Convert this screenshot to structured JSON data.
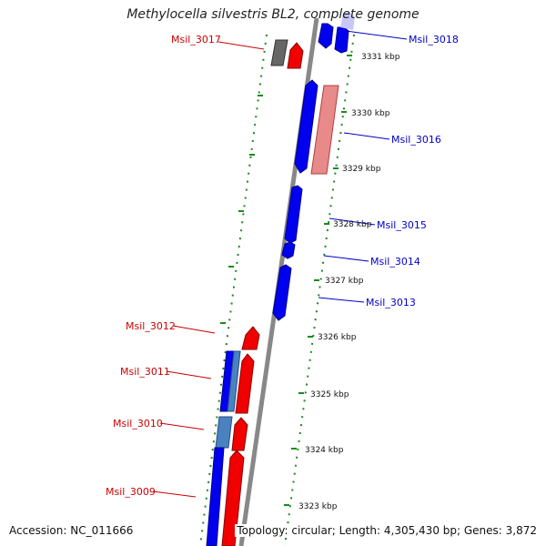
{
  "title": "Methylocella silvestris BL2, complete genome",
  "accession_text": "Accession: NC_011666",
  "summary_text": "Topology: circular; Length: 4,305,430 bp; Genes: 3,872",
  "colors": {
    "forward_gene": "#f00000",
    "reverse_gene": "#0000ee",
    "backbone": "#888888",
    "tick": "#1a8a1a",
    "forward_label": "#cc0000",
    "reverse_label": "#0000cc"
  },
  "kbp_ticks": [
    "3323 kbp",
    "3324 kbp",
    "3325 kbp",
    "3326 kbp",
    "3327 kbp",
    "3328 kbp",
    "3329 kbp",
    "3330 kbp",
    "3331 kbp"
  ],
  "gene_labels": [
    {
      "text": "Msil_3017",
      "strand": "forward"
    },
    {
      "text": "Msil_3018",
      "strand": "reverse"
    },
    {
      "text": "Msil_3016",
      "strand": "reverse"
    },
    {
      "text": "Msil_3015",
      "strand": "reverse"
    },
    {
      "text": "Msil_3014",
      "strand": "reverse"
    },
    {
      "text": "Msil_3013",
      "strand": "reverse"
    },
    {
      "text": "Msil_3012",
      "strand": "forward"
    },
    {
      "text": "Msil_3011",
      "strand": "forward"
    },
    {
      "text": "Msil_3010",
      "strand": "forward"
    },
    {
      "text": "Msil_3009",
      "strand": "forward"
    }
  ]
}
